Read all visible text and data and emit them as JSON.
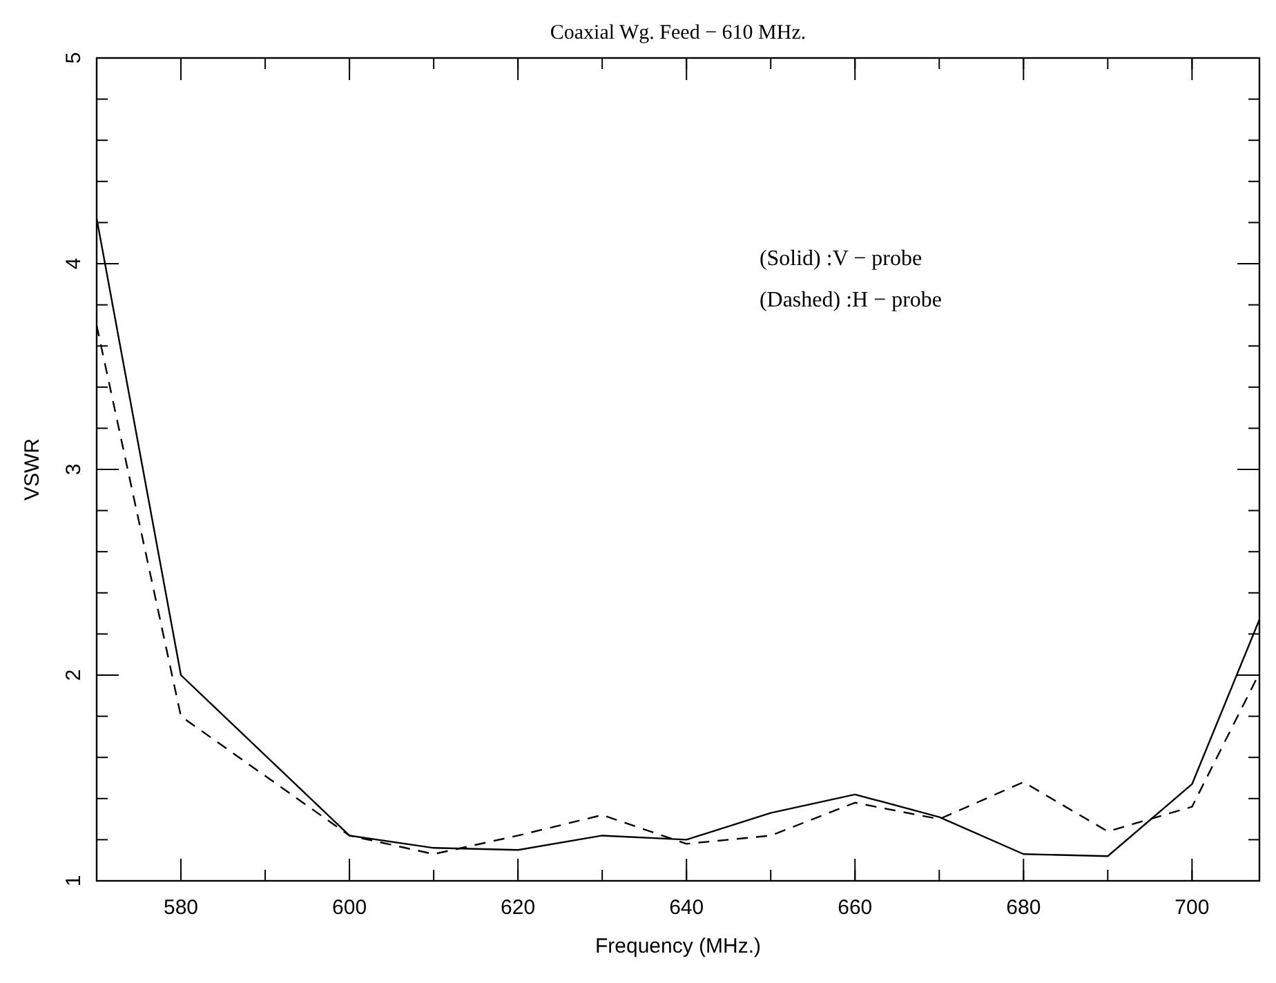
{
  "chart_data": {
    "type": "line",
    "title": "Coaxial Wg. Feed − 610 MHz.",
    "xlabel": "Frequency (MHz.)",
    "ylabel": "VSWR",
    "x": [
      570,
      580,
      600,
      610,
      620,
      630,
      640,
      650,
      660,
      670,
      680,
      690,
      700,
      708
    ],
    "series": [
      {
        "color": "#000000",
        "line_style": "solid",
        "values": [
          4.22,
          2.0,
          1.22,
          1.16,
          1.15,
          1.22,
          1.2,
          1.33,
          1.42,
          1.31,
          1.13,
          1.12,
          1.47,
          2.27
        ]
      },
      {
        "color": "#000000",
        "line_style": "dashed",
        "values": [
          3.7,
          1.8,
          1.22,
          1.13,
          1.22,
          1.32,
          1.18,
          1.22,
          1.38,
          1.3,
          1.48,
          1.24,
          1.36,
          2.01
        ]
      }
    ],
    "annotations": [
      "(Solid) :V − probe",
      "(Dashed) :H − probe"
    ],
    "xlim": [
      570,
      708
    ],
    "xticks": [
      580,
      600,
      620,
      640,
      660,
      680,
      700
    ],
    "ylim": [
      1,
      5
    ],
    "yticks": [
      1,
      2,
      3,
      4,
      5
    ],
    "grid": false
  }
}
